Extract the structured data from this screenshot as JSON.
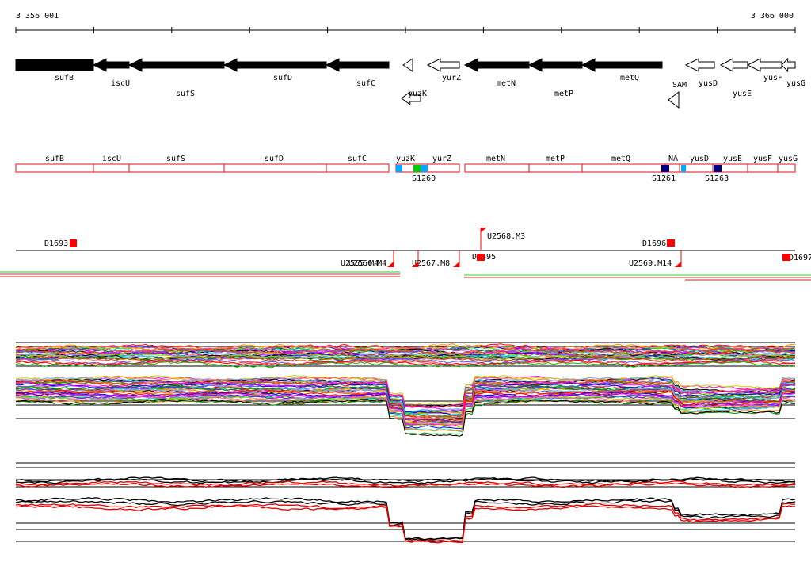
{
  "coordinates": {
    "start": "3 356 001",
    "end": "3 366 000"
  },
  "genes": [
    {
      "name": "sufB",
      "strand": "+",
      "filled": true
    },
    {
      "name": "iscU",
      "strand": "-",
      "filled": true
    },
    {
      "name": "sufS",
      "strand": "-",
      "filled": true
    },
    {
      "name": "sufD",
      "strand": "-",
      "filled": true
    },
    {
      "name": "sufC",
      "strand": "-",
      "filled": true
    },
    {
      "name": "yuzK",
      "strand": "-",
      "filled": false
    },
    {
      "name": "yurZ",
      "strand": "-",
      "filled": false
    },
    {
      "name": "metN",
      "strand": "-",
      "filled": true
    },
    {
      "name": "metP",
      "strand": "-",
      "filled": true
    },
    {
      "name": "metQ",
      "strand": "-",
      "filled": true
    },
    {
      "name": "SAM",
      "strand": "-",
      "filled": false
    },
    {
      "name": "yusD",
      "strand": "-",
      "filled": false
    },
    {
      "name": "yusE",
      "strand": "-",
      "filled": false
    },
    {
      "name": "yusF",
      "strand": "-",
      "filled": false
    },
    {
      "name": "yusG",
      "strand": "-",
      "filled": false
    }
  ],
  "transcript_labels": [
    "sufB",
    "iscU",
    "sufS",
    "sufD",
    "sufC",
    "yuzK",
    "yurZ",
    "metN",
    "metP",
    "metQ",
    "NA",
    "yusD",
    "yusE",
    "yusF",
    "yusG"
  ],
  "segments": [
    {
      "name": "S1260"
    },
    {
      "name": "S1261"
    },
    {
      "name": "S1263"
    }
  ],
  "markers": [
    {
      "name": "D1693"
    },
    {
      "name": "U2568.M3"
    },
    {
      "name": "D1696"
    },
    {
      "name": "U2565.M4"
    },
    {
      "name": "U2566.M4"
    },
    {
      "name": "U2567.M8"
    },
    {
      "name": "D1695"
    },
    {
      "name": "U2569.M14"
    },
    {
      "name": "D1697"
    }
  ],
  "colors": {
    "gene_fill": "#000000",
    "transcript_border": "#e01010",
    "marker": "#ff0000",
    "segment_light_blue": "#00aaff",
    "segment_green": "#00cc00",
    "segment_navy": "#000080",
    "profile_red": "#e00000"
  }
}
